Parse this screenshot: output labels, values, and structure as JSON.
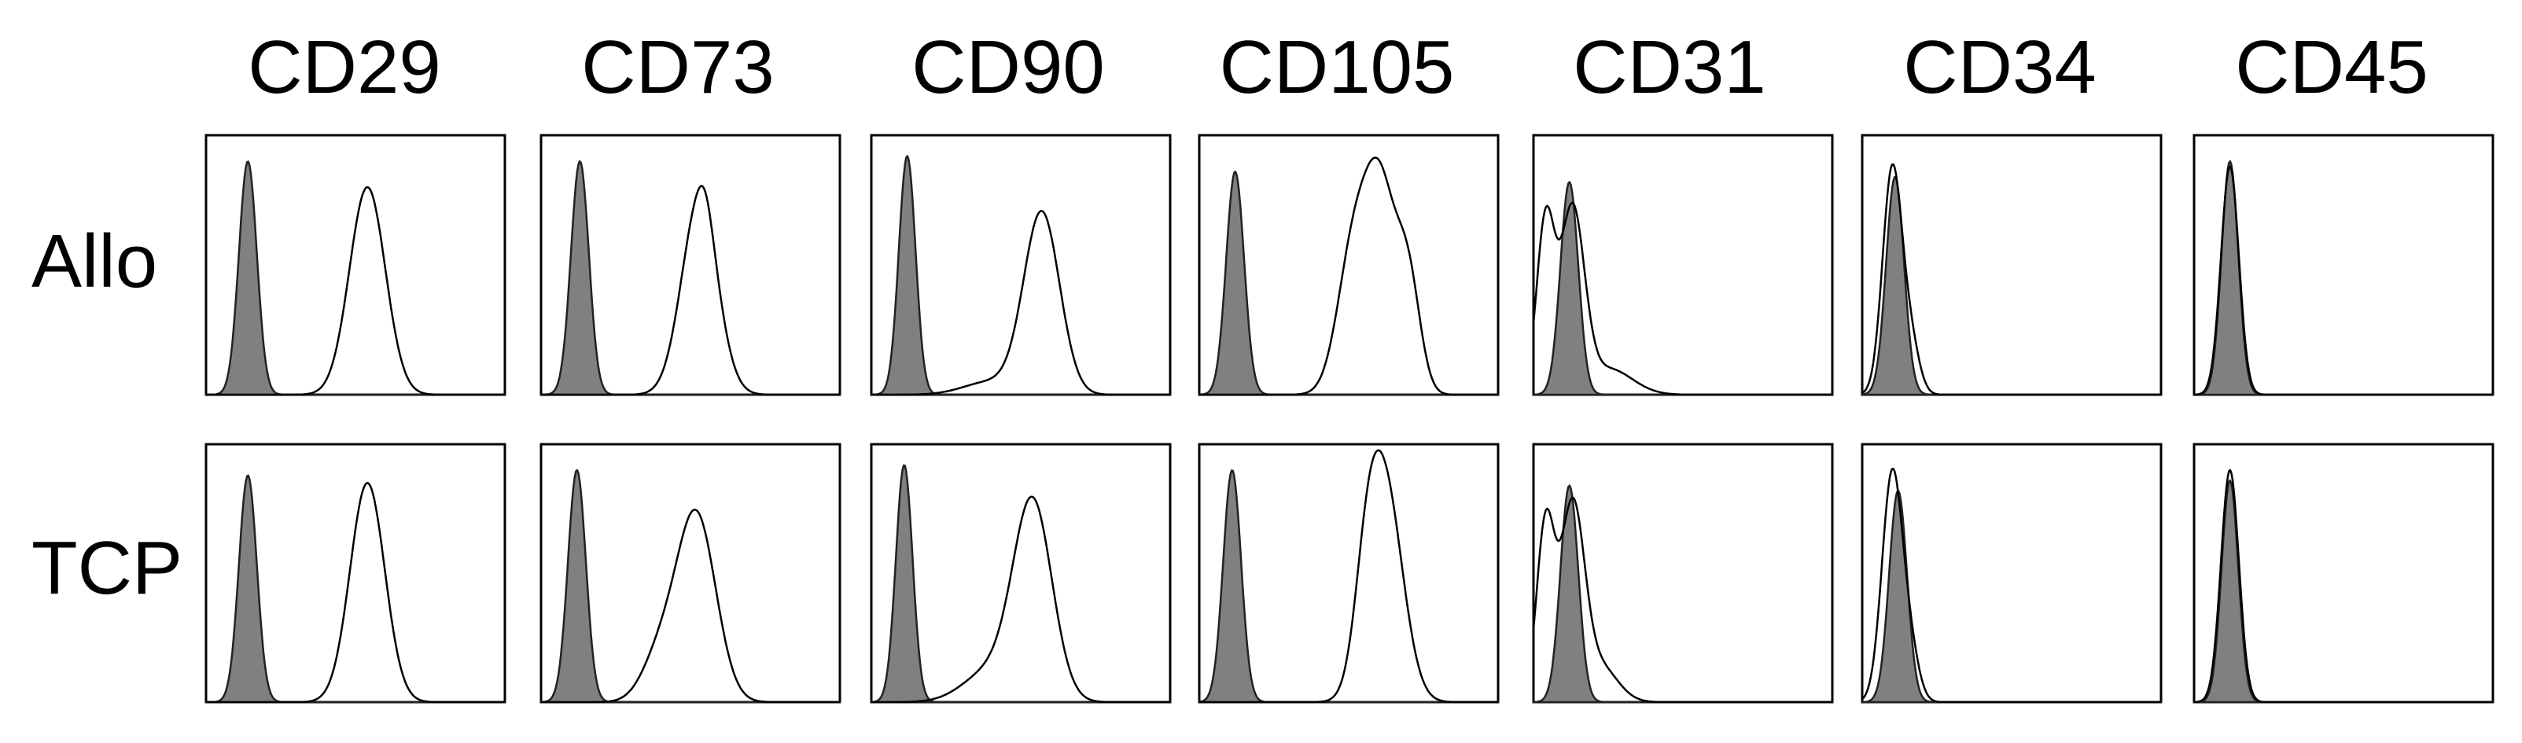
{
  "chart_data": {
    "type": "histogram-grid",
    "columns": [
      "CD29",
      "CD73",
      "CD90",
      "CD105",
      "CD31",
      "CD34",
      "CD45"
    ],
    "rows": [
      "Allo",
      "TCP"
    ],
    "series_roles": [
      "isotype control (filled)",
      "marker stain (open line)"
    ],
    "x_range": [
      0,
      1
    ],
    "y_range": [
      0,
      1
    ],
    "notes": "Values are normalized fluorescence intensity (x) and normalized event count (y); axes carry no printed ticks.",
    "panels": [
      {
        "row": "Allo",
        "marker": "CD29",
        "isotype": {
          "peak_x": 0.14,
          "width": 0.03,
          "height": 0.9
        },
        "stain": {
          "peaks": [
            {
              "x": 0.54,
              "width": 0.06,
              "height": 0.8
            }
          ]
        }
      },
      {
        "row": "Allo",
        "marker": "CD73",
        "isotype": {
          "peak_x": 0.13,
          "width": 0.03,
          "height": 0.9
        },
        "stain": {
          "peaks": [
            {
              "x": 0.53,
              "width": 0.06,
              "height": 0.74
            },
            {
              "x": 0.55,
              "width": 0.025,
              "height": 0.08
            }
          ]
        }
      },
      {
        "row": "Allo",
        "marker": "CD90",
        "isotype": {
          "peak_x": 0.12,
          "width": 0.028,
          "height": 0.92
        },
        "stain": {
          "peaks": [
            {
              "x": 0.57,
              "width": 0.06,
              "height": 0.7
            },
            {
              "x": 0.4,
              "width": 0.09,
              "height": 0.05
            }
          ]
        }
      },
      {
        "row": "Allo",
        "marker": "CD105",
        "isotype": {
          "peak_x": 0.12,
          "width": 0.03,
          "height": 0.86
        },
        "stain": {
          "peaks": [
            {
              "x": 0.52,
              "width": 0.055,
              "height": 0.58
            },
            {
              "x": 0.61,
              "width": 0.05,
              "height": 0.7
            },
            {
              "x": 0.7,
              "width": 0.04,
              "height": 0.42
            }
          ]
        }
      },
      {
        "row": "Allo",
        "marker": "CD31",
        "isotype": {
          "peak_x": 0.12,
          "width": 0.03,
          "height": 0.82
        },
        "stain": {
          "peaks": [
            {
              "x": 0.04,
              "width": 0.03,
              "height": 0.66
            },
            {
              "x": 0.13,
              "width": 0.04,
              "height": 0.7
            },
            {
              "x": 0.25,
              "width": 0.08,
              "height": 0.1
            }
          ]
        }
      },
      {
        "row": "Allo",
        "marker": "CD34",
        "isotype": {
          "peak_x": 0.11,
          "width": 0.03,
          "height": 0.84
        },
        "stain": {
          "peaks": [
            {
              "x": 0.1,
              "width": 0.032,
              "height": 0.86
            },
            {
              "x": 0.16,
              "width": 0.03,
              "height": 0.2
            }
          ]
        }
      },
      {
        "row": "Allo",
        "marker": "CD45",
        "isotype": {
          "peak_x": 0.12,
          "width": 0.028,
          "height": 0.9
        },
        "stain": {
          "peaks": [
            {
              "x": 0.12,
              "width": 0.03,
              "height": 0.88
            }
          ]
        }
      },
      {
        "row": "TCP",
        "marker": "CD29",
        "isotype": {
          "peak_x": 0.14,
          "width": 0.03,
          "height": 0.88
        },
        "stain": {
          "peaks": [
            {
              "x": 0.54,
              "width": 0.058,
              "height": 0.85
            }
          ]
        }
      },
      {
        "row": "TCP",
        "marker": "CD73",
        "isotype": {
          "peak_x": 0.12,
          "width": 0.03,
          "height": 0.9
        },
        "stain": {
          "peaks": [
            {
              "x": 0.52,
              "width": 0.065,
              "height": 0.72
            },
            {
              "x": 0.4,
              "width": 0.06,
              "height": 0.18
            }
          ]
        }
      },
      {
        "row": "TCP",
        "marker": "CD90",
        "isotype": {
          "peak_x": 0.11,
          "width": 0.028,
          "height": 0.92
        },
        "stain": {
          "peaks": [
            {
              "x": 0.54,
              "width": 0.065,
              "height": 0.76
            },
            {
              "x": 0.4,
              "width": 0.09,
              "height": 0.12
            }
          ]
        }
      },
      {
        "row": "TCP",
        "marker": "CD105",
        "isotype": {
          "peak_x": 0.11,
          "width": 0.03,
          "height": 0.9
        },
        "stain": {
          "peaks": [
            {
              "x": 0.62,
              "width": 0.06,
              "height": 0.84
            },
            {
              "x": 0.56,
              "width": 0.04,
              "height": 0.3
            }
          ]
        }
      },
      {
        "row": "TCP",
        "marker": "CD31",
        "isotype": {
          "peak_x": 0.12,
          "width": 0.03,
          "height": 0.84
        },
        "stain": {
          "peaks": [
            {
              "x": 0.04,
              "width": 0.03,
              "height": 0.68
            },
            {
              "x": 0.13,
              "width": 0.04,
              "height": 0.74
            },
            {
              "x": 0.22,
              "width": 0.06,
              "height": 0.14
            }
          ]
        }
      },
      {
        "row": "TCP",
        "marker": "CD34",
        "isotype": {
          "peak_x": 0.12,
          "width": 0.03,
          "height": 0.82
        },
        "stain": {
          "peaks": [
            {
              "x": 0.1,
              "width": 0.034,
              "height": 0.88
            },
            {
              "x": 0.16,
              "width": 0.03,
              "height": 0.18
            }
          ]
        }
      },
      {
        "row": "TCP",
        "marker": "CD45",
        "isotype": {
          "peak_x": 0.12,
          "width": 0.028,
          "height": 0.86
        },
        "stain": {
          "peaks": [
            {
              "x": 0.12,
              "width": 0.03,
              "height": 0.9
            }
          ]
        }
      }
    ],
    "colors": {
      "isotype_fill": "#808080",
      "outline": "#000000"
    }
  }
}
